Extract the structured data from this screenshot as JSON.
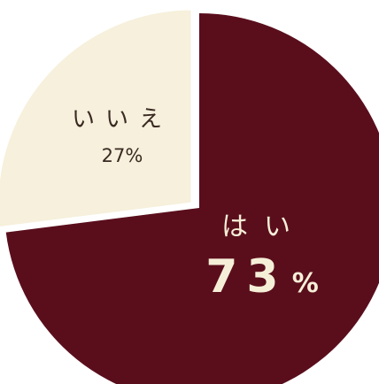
{
  "chart_data": {
    "type": "pie",
    "title": "",
    "slices": [
      {
        "label": "はい",
        "value": 73,
        "value_label": "73",
        "unit": "%",
        "color": "#5a0e1c",
        "text_color": "#f6efd8"
      },
      {
        "label": "いいえ",
        "value": 27,
        "value_label": "27%",
        "color": "#f6f0dc",
        "text_color": "#3a2a22"
      }
    ],
    "exploded_slice": "いいえ",
    "background": "#ffffff"
  }
}
